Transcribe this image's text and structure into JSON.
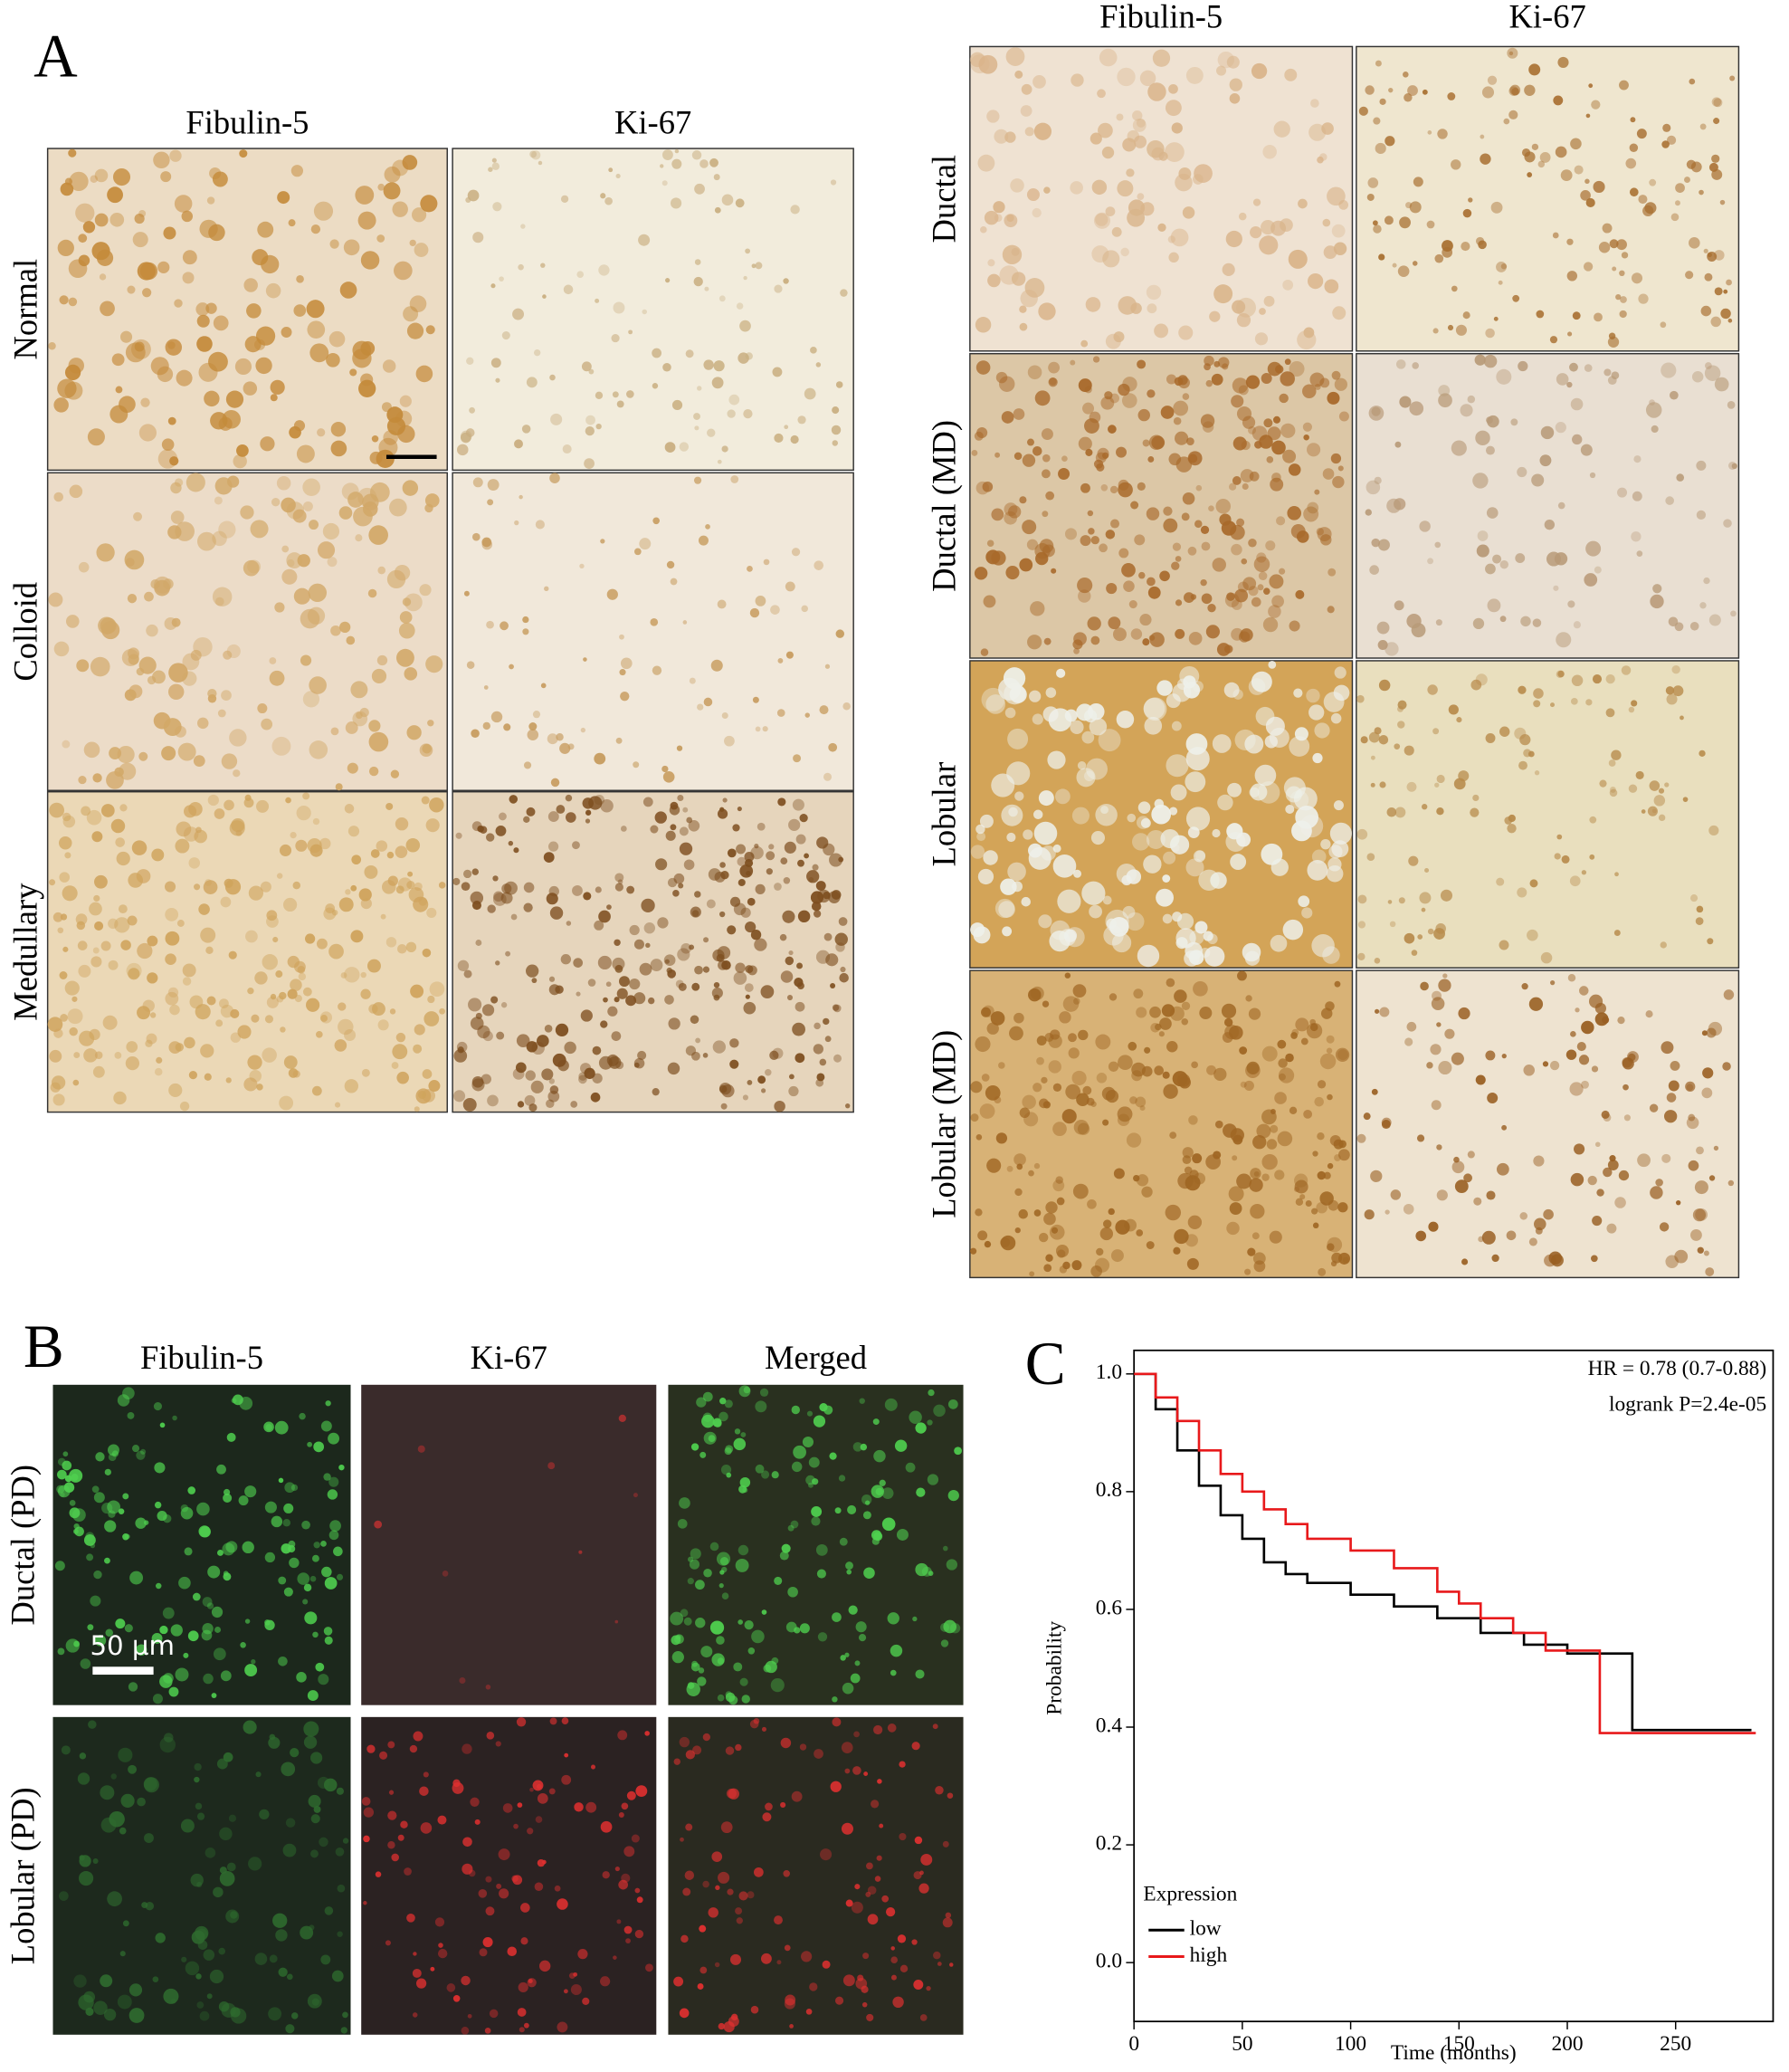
{
  "panel_a": {
    "label": "A",
    "left": {
      "columns": [
        "Fibulin-5",
        "Ki-67"
      ],
      "rows": [
        "Normal",
        "Colloid",
        "Medullary"
      ]
    },
    "right": {
      "columns": [
        "Fibulin-5",
        "Ki-67"
      ],
      "rows": [
        "Ductal",
        "Ductal (MD)",
        "Lobular",
        "Lobular (MD)"
      ]
    }
  },
  "panel_b": {
    "label": "B",
    "columns": [
      "Fibulin-5",
      "Ki-67",
      "Merged"
    ],
    "rows": [
      "Ductal (PD)",
      "Lobular (PD)"
    ],
    "scale_bar": "50 µm"
  },
  "panel_c": {
    "label": "C"
  },
  "chart_data": {
    "type": "line",
    "x_label": "Time (months)",
    "y_label": "Probability",
    "annotations": [
      "HR = 0.78 (0.7-0.88)",
      "logrank P=2.4e-05"
    ],
    "legend_title": "Expression",
    "xlim": [
      0,
      295
    ],
    "xticks": [
      0,
      50,
      100,
      150,
      200,
      250
    ],
    "ylim": [
      -0.1,
      1.04
    ],
    "yticks": [
      {
        "value": 0,
        "label": "0.0"
      },
      {
        "value": 0.2,
        "label": "0.2"
      },
      {
        "value": 0.4,
        "label": "0.4"
      },
      {
        "value": 0.6,
        "label": "0.6"
      },
      {
        "value": 0.8,
        "label": "0.8"
      },
      {
        "value": 1,
        "label": "1.0"
      }
    ],
    "series": [
      {
        "name": "low",
        "color": "#000000",
        "x": [
          0,
          10,
          20,
          30,
          40,
          50,
          60,
          70,
          80,
          100,
          120,
          140,
          160,
          180,
          200,
          230,
          230,
          285
        ],
        "values": [
          1.0,
          0.94,
          0.87,
          0.81,
          0.76,
          0.72,
          0.68,
          0.66,
          0.645,
          0.625,
          0.605,
          0.585,
          0.56,
          0.54,
          0.525,
          0.525,
          0.395,
          0.395
        ]
      },
      {
        "name": "high",
        "color": "#e8191b",
        "x": [
          0,
          10,
          20,
          30,
          40,
          50,
          60,
          70,
          80,
          100,
          120,
          140,
          150,
          160,
          175,
          190,
          215,
          215,
          287
        ],
        "values": [
          1.0,
          0.96,
          0.92,
          0.87,
          0.83,
          0.8,
          0.77,
          0.745,
          0.72,
          0.7,
          0.67,
          0.63,
          0.61,
          0.585,
          0.56,
          0.53,
          0.52,
          0.39,
          0.39
        ]
      }
    ]
  }
}
